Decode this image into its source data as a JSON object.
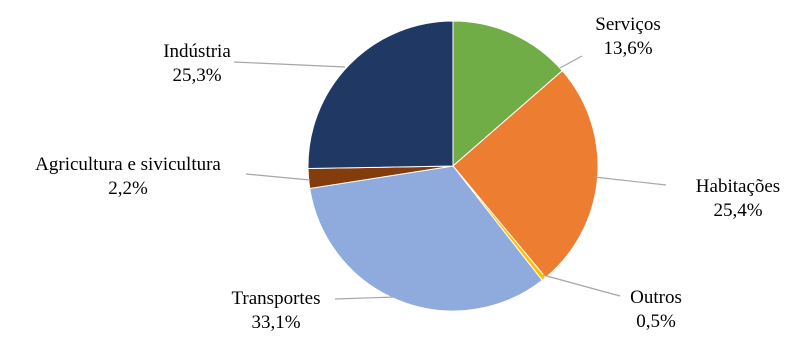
{
  "chart_data": {
    "type": "pie",
    "title": "",
    "start_angle_deg": 0,
    "direction": "clockwise",
    "slices": [
      {
        "label": "Serviços",
        "value_label": "13,6%",
        "value": 13.6,
        "color": "#70AD47"
      },
      {
        "label": "Habitações",
        "value_label": "25,4%",
        "value": 25.4,
        "color": "#ED7D31"
      },
      {
        "label": "Outros",
        "value_label": "0,5%",
        "value": 0.5,
        "color": "#FFC000"
      },
      {
        "label": "Transportes",
        "value_label": "33,1%",
        "value": 33.1,
        "color": "#8FAADC"
      },
      {
        "label": "Agricultura e sivicultura",
        "value_label": "2,2%",
        "value": 2.2,
        "color": "#843C0C"
      },
      {
        "label": "Indústria",
        "value_label": "25,3%",
        "value": 25.3,
        "color": "#203864"
      }
    ]
  }
}
